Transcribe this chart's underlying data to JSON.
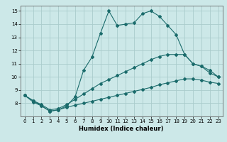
{
  "xlabel": "Humidex (Indice chaleur)",
  "ylabel": "",
  "background_color": "#cce8e8",
  "grid_color": "#aacccc",
  "line_color": "#1a6b6b",
  "xlim": [
    -0.5,
    23.5
  ],
  "ylim": [
    7,
    15.4
  ],
  "xticks": [
    0,
    1,
    2,
    3,
    4,
    5,
    6,
    7,
    8,
    9,
    10,
    11,
    12,
    13,
    14,
    15,
    16,
    17,
    18,
    19,
    20,
    21,
    22,
    23
  ],
  "yticks": [
    8,
    9,
    10,
    11,
    12,
    13,
    14,
    15
  ],
  "lines": [
    {
      "x": [
        0,
        1,
        2,
        3,
        4,
        5,
        6,
        7,
        8,
        9,
        10,
        11,
        12,
        13,
        14,
        15,
        16,
        17,
        18,
        19,
        20,
        21,
        22,
        23
      ],
      "y": [
        8.6,
        8.2,
        7.8,
        7.4,
        7.5,
        7.8,
        8.5,
        10.5,
        11.5,
        13.3,
        15.0,
        13.9,
        14.0,
        14.1,
        14.8,
        15.0,
        14.6,
        13.9,
        13.2,
        11.7,
        11.0,
        10.8,
        10.3,
        10.0
      ]
    },
    {
      "x": [
        0,
        1,
        2,
        3,
        4,
        5,
        6,
        7,
        8,
        9,
        10,
        11,
        12,
        13,
        14,
        15,
        16,
        17,
        18,
        19,
        20,
        21,
        22,
        23
      ],
      "y": [
        8.6,
        8.2,
        7.9,
        7.5,
        7.6,
        7.9,
        8.3,
        8.7,
        9.1,
        9.5,
        9.8,
        10.1,
        10.4,
        10.7,
        11.0,
        11.3,
        11.55,
        11.7,
        11.7,
        11.7,
        11.0,
        10.8,
        10.5,
        10.0
      ]
    },
    {
      "x": [
        0,
        1,
        2,
        3,
        4,
        5,
        6,
        7,
        8,
        9,
        10,
        11,
        12,
        13,
        14,
        15,
        16,
        17,
        18,
        19,
        20,
        21,
        22,
        23
      ],
      "y": [
        8.6,
        8.1,
        7.8,
        7.4,
        7.5,
        7.7,
        7.85,
        8.0,
        8.15,
        8.3,
        8.45,
        8.6,
        8.75,
        8.9,
        9.05,
        9.2,
        9.4,
        9.55,
        9.7,
        9.85,
        9.85,
        9.75,
        9.6,
        9.5
      ]
    }
  ]
}
